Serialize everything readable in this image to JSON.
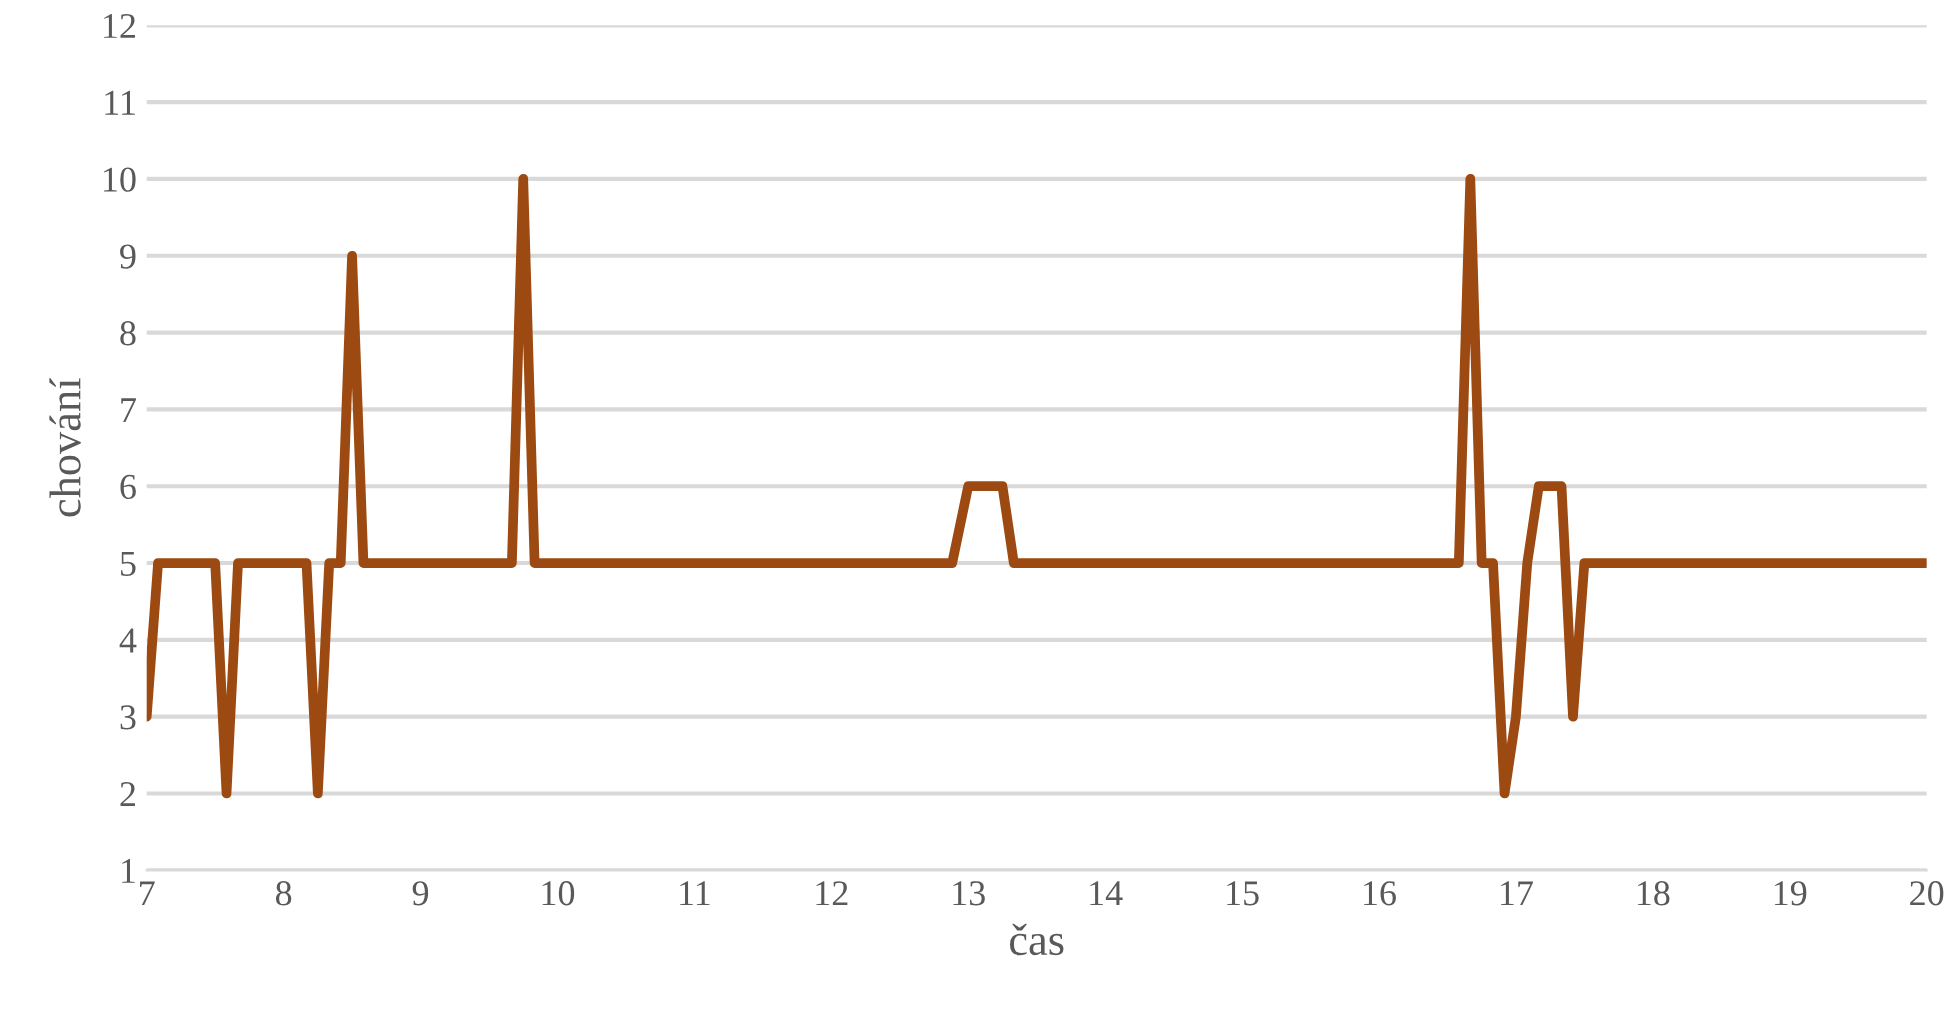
{
  "chart_data": {
    "type": "line",
    "xlabel": "čas",
    "ylabel": "chování",
    "xlim": [
      7,
      20
    ],
    "xticks": [
      7,
      8,
      9,
      10,
      11,
      12,
      13,
      14,
      15,
      16,
      17,
      18,
      19,
      20
    ],
    "ylim": [
      1,
      12
    ],
    "yticks": [
      1,
      2,
      3,
      4,
      5,
      6,
      7,
      8,
      9,
      10,
      11,
      12
    ],
    "grid": "y",
    "series": [
      {
        "color": "#9c4a11",
        "x": [
          7,
          7.083,
          7.5,
          7.583,
          7.667,
          8.167,
          8.25,
          8.333,
          8.417,
          8.5,
          8.583,
          9.667,
          9.75,
          9.833,
          12.883,
          13,
          13.25,
          13.333,
          16.583,
          16.667,
          16.75,
          16.833,
          16.917,
          17,
          17.083,
          17.167,
          17.333,
          17.417,
          17.5,
          20
        ],
        "values": [
          3,
          5,
          5,
          2,
          5,
          5,
          2,
          5,
          5,
          9,
          5,
          5,
          10,
          5,
          5,
          6,
          6,
          5,
          5,
          10,
          5,
          5,
          2,
          3,
          5,
          6,
          6,
          3,
          5,
          5
        ]
      }
    ]
  }
}
